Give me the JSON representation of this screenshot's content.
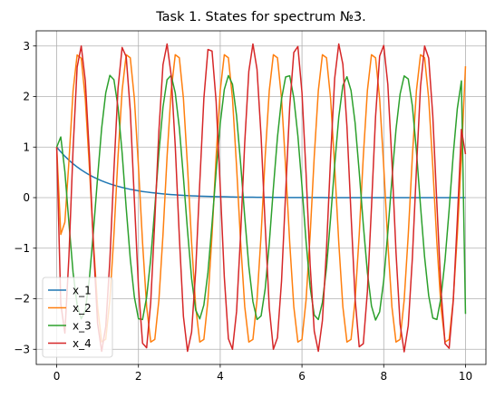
{
  "chart_data": {
    "type": "line",
    "title": "Task 1. States for spectrum №3.",
    "xlabel": "",
    "ylabel": "",
    "xlim": [
      -0.5,
      10.5
    ],
    "ylim": [
      -3.3,
      3.3
    ],
    "xticks": [
      0,
      2,
      4,
      6,
      8,
      10
    ],
    "xtick_labels": [
      "0",
      "2",
      "4",
      "6",
      "8",
      "10"
    ],
    "yticks": [
      -3,
      -2,
      -1,
      0,
      1,
      2,
      3
    ],
    "ytick_labels": [
      "−3",
      "−2",
      "−1",
      "0",
      "1",
      "2",
      "3"
    ],
    "grid": true,
    "legend_position": "lower-left",
    "x": [
      0,
      0.1,
      0.2,
      0.3,
      0.4,
      0.5,
      0.6,
      0.7,
      0.8,
      0.9,
      1.0,
      1.1,
      1.2,
      1.3,
      1.4,
      1.5,
      1.6,
      1.7,
      1.8,
      1.9,
      2.0,
      2.1,
      2.2,
      2.3,
      2.4,
      2.5,
      2.6,
      2.7,
      2.8,
      2.9,
      3.0,
      3.1,
      3.2,
      3.3,
      3.4,
      3.5,
      3.6,
      3.7,
      3.8,
      3.9,
      4.0,
      4.1,
      4.2,
      4.3,
      4.4,
      4.5,
      4.6,
      4.7,
      4.8,
      4.9,
      5.0,
      5.1,
      5.2,
      5.3,
      5.4,
      5.5,
      5.6,
      5.7,
      5.8,
      5.9,
      6.0,
      6.1,
      6.2,
      6.3,
      6.4,
      6.5,
      6.6,
      6.7,
      6.8,
      6.9,
      7.0,
      7.1,
      7.2,
      7.3,
      7.4,
      7.5,
      7.6,
      7.7,
      7.8,
      7.9,
      8.0,
      8.1,
      8.2,
      8.3,
      8.4,
      8.5,
      8.6,
      8.7,
      8.8,
      8.9,
      9.0,
      9.1,
      9.2,
      9.3,
      9.4,
      9.5,
      9.6,
      9.7,
      9.8,
      9.9,
      10.0
    ],
    "series": [
      {
        "name": "x_1",
        "color": "#1f77b4",
        "values": [
          1.0,
          0.905,
          0.819,
          0.741,
          0.67,
          0.607,
          0.549,
          0.497,
          0.449,
          0.407,
          0.368,
          0.333,
          0.301,
          0.273,
          0.247,
          0.223,
          0.202,
          0.183,
          0.165,
          0.15,
          0.135,
          0.122,
          0.111,
          0.1,
          0.091,
          0.082,
          0.074,
          0.067,
          0.061,
          0.055,
          0.05,
          0.045,
          0.041,
          0.037,
          0.033,
          0.03,
          0.027,
          0.025,
          0.022,
          0.02,
          0.018,
          0.017,
          0.015,
          0.014,
          0.012,
          0.011,
          0.01,
          0.009,
          0.008,
          0.007,
          0.007,
          0.006,
          0.006,
          0.005,
          0.005,
          0.004,
          0.004,
          0.003,
          0.003,
          0.003,
          0.002,
          0.002,
          0.002,
          0.002,
          0.002,
          0.002,
          0.001,
          0.001,
          0.001,
          0.001,
          0.001,
          0.001,
          0.001,
          0.001,
          0.001,
          0.001,
          0.0,
          0.0,
          0.0,
          0.0,
          0.0,
          0.0,
          0.0,
          0.0,
          0.0,
          0.0,
          0.0,
          0.0,
          0.0,
          0.0,
          0.0,
          0.0,
          0.0,
          0.0,
          0.0,
          0.0,
          0.0,
          0.0,
          0.0,
          0.0,
          0.0
        ]
      },
      {
        "name": "x_2",
        "color": "#ff7f0e",
        "values": [
          1.0,
          -0.728,
          -0.486,
          0.724,
          2.108,
          2.823,
          2.757,
          1.945,
          0.597,
          -0.907,
          -2.159,
          -2.852,
          -2.801,
          -2.024,
          -0.733,
          0.812,
          2.116,
          2.827,
          2.766,
          1.961,
          0.613,
          -0.89,
          -2.158,
          -2.856,
          -2.804,
          -2.025,
          -0.733,
          0.812,
          2.116,
          2.827,
          2.766,
          1.961,
          0.613,
          -0.89,
          -2.158,
          -2.856,
          -2.804,
          -2.025,
          -0.733,
          0.812,
          2.116,
          2.827,
          2.766,
          1.961,
          0.613,
          -0.89,
          -2.158,
          -2.856,
          -2.804,
          -2.025,
          -0.733,
          0.812,
          2.116,
          2.827,
          2.766,
          1.961,
          0.613,
          -0.89,
          -2.158,
          -2.856,
          -2.804,
          -2.025,
          -0.733,
          0.812,
          2.116,
          2.827,
          2.766,
          1.961,
          0.613,
          -0.89,
          -2.158,
          -2.856,
          -2.804,
          -2.025,
          -0.733,
          0.812,
          2.116,
          2.827,
          2.766,
          1.961,
          0.613,
          -0.89,
          -2.158,
          -2.856,
          -2.804,
          -2.025,
          -0.733,
          0.812,
          2.116,
          2.827,
          2.766,
          1.961,
          0.613,
          -0.89,
          -2.158,
          -2.856,
          -2.804,
          -2.025,
          -0.733,
          0.812,
          2.6
        ]
      },
      {
        "name": "x_3",
        "color": "#2ca02c",
        "values": [
          1.0,
          1.2,
          0.516,
          -0.511,
          -1.477,
          -2.124,
          -2.398,
          -2.226,
          -1.602,
          -0.652,
          0.397,
          1.379,
          2.073,
          2.419,
          2.333,
          1.79,
          0.886,
          -0.204,
          -1.209,
          -1.967,
          -2.396,
          -2.411,
          -1.967,
          -1.209,
          -0.204,
          0.886,
          1.79,
          2.333,
          2.419,
          2.073,
          1.379,
          0.397,
          -0.652,
          -1.602,
          -2.226,
          -2.398,
          -2.124,
          -1.477,
          -0.511,
          0.516,
          1.466,
          2.14,
          2.415,
          2.242,
          1.618,
          0.669,
          -0.38,
          -1.363,
          -2.058,
          -2.41,
          -2.34,
          -1.805,
          -0.903,
          0.186,
          1.193,
          1.953,
          2.388,
          2.41,
          1.972,
          1.221,
          0.222,
          -0.867,
          -1.774,
          -2.322,
          -2.412,
          -2.072,
          -1.383,
          -0.405,
          0.643,
          1.593,
          2.219,
          2.392,
          2.12,
          1.475,
          0.51,
          -0.532,
          -1.477,
          -2.142,
          -2.421,
          -2.258,
          -1.639,
          -0.685,
          0.364,
          1.349,
          2.049,
          2.408,
          2.347,
          1.818,
          0.92,
          -0.168,
          -1.177,
          -1.939,
          -2.381,
          -2.41,
          -1.979,
          -1.233,
          -0.239,
          0.851,
          1.76,
          2.31,
          -2.3
        ]
      },
      {
        "name": "x_4",
        "color": "#d62728",
        "values": [
          1.0,
          -2.1,
          -2.68,
          -1.15,
          0.95,
          2.58,
          3.0,
          2.31,
          0.85,
          -0.98,
          -2.49,
          -3.04,
          -2.55,
          -1.25,
          0.55,
          2.16,
          2.97,
          2.79,
          1.72,
          -0.05,
          -1.77,
          -2.88,
          -2.97,
          -2.07,
          -0.45,
          1.32,
          2.63,
          3.04,
          2.42,
          1.02,
          -0.78,
          -2.35,
          -3.04,
          -2.66,
          -1.44,
          0.3,
          1.96,
          2.93,
          2.9,
          1.9,
          0.22,
          -1.57,
          -2.79,
          -3.0,
          -2.25,
          -0.71,
          1.09,
          2.5,
          3.04,
          2.54,
          1.21,
          -0.55,
          -2.18,
          -3.0,
          -2.77,
          -1.65,
          0.09,
          1.8,
          2.87,
          2.99,
          2.08,
          0.48,
          -1.33,
          -2.64,
          -3.04,
          -2.43,
          -1.01,
          0.79,
          2.36,
          3.04,
          2.64,
          1.41,
          -0.33,
          -2.0,
          -2.95,
          -2.89,
          -1.86,
          -0.19,
          1.6,
          2.8,
          3.01,
          2.24,
          0.72,
          -1.08,
          -2.5,
          -3.05,
          -2.53,
          -1.2,
          0.57,
          2.2,
          3.0,
          2.76,
          1.62,
          -0.12,
          -1.82,
          -2.89,
          -2.98,
          -2.05,
          -0.45,
          1.35,
          0.86
        ]
      }
    ]
  }
}
